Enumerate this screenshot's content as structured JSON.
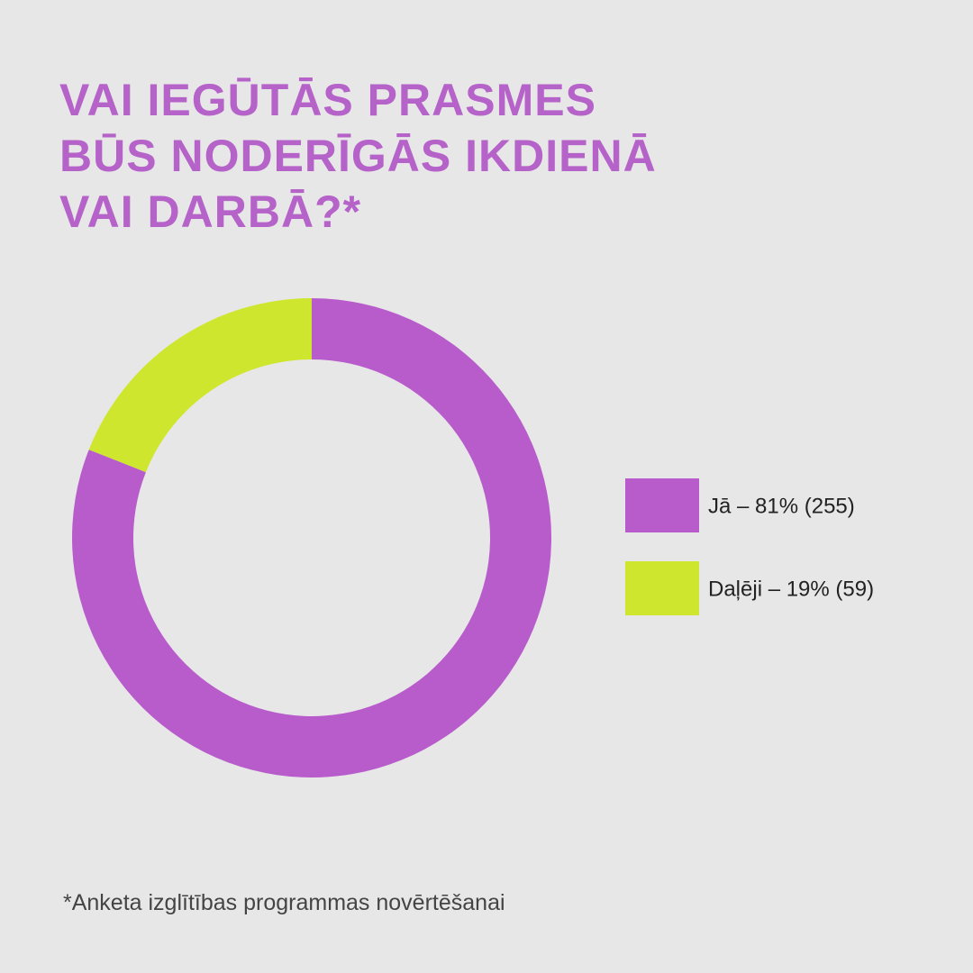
{
  "chart_data": {
    "type": "donut",
    "title": [
      "VAI IEGŪTĀS PRASMES",
      "BŪS NODERĪGĀS IKDIENĀ",
      "VAI DARBĀ?*"
    ],
    "categories": [
      "Jā – 81% (255)",
      "Daļēji – 19% (59)"
    ],
    "values": [
      81,
      19
    ],
    "colors": [
      "#b85ccc",
      "#cfe62e"
    ],
    "legend": "right",
    "footnote": "*Anketa izglītības programmas novērtēšanai"
  }
}
